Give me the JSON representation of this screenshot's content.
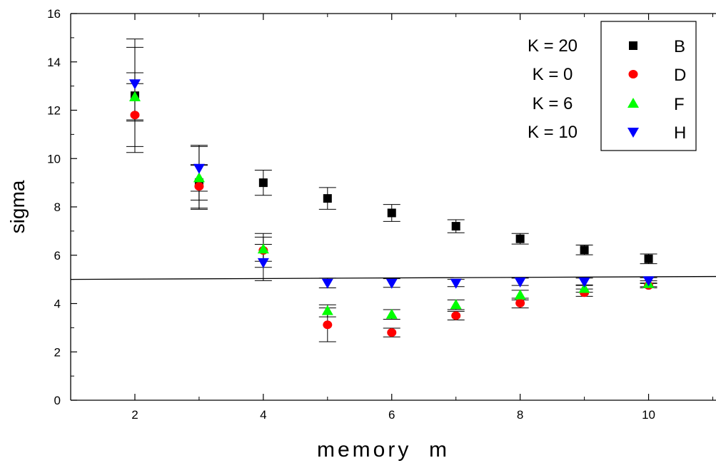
{
  "chart_data": {
    "type": "scatter",
    "xlabel": "memory  m",
    "ylabel": "sigma",
    "xlim": [
      1,
      11.05
    ],
    "ylim": [
      0,
      16
    ],
    "x_ticks": [
      2,
      4,
      6,
      8,
      10
    ],
    "y_ticks": [
      0,
      2,
      4,
      6,
      8,
      10,
      12,
      14,
      16
    ],
    "grid": false,
    "legend_position": "top-right",
    "x": [
      2,
      3,
      4,
      5,
      6,
      7,
      8,
      9,
      10
    ],
    "series": [
      {
        "name": "B",
        "annotation": "K = 20",
        "color": "#000000",
        "marker": "square",
        "values": [
          12.6,
          9.0,
          9.0,
          8.35,
          7.75,
          7.2,
          6.68,
          6.22,
          5.85
        ],
        "errors": [
          2.35,
          0.72,
          0.52,
          0.45,
          0.35,
          0.27,
          0.22,
          0.2,
          0.2
        ]
      },
      {
        "name": "D",
        "annotation": "K = 0",
        "color": "#ff0000",
        "marker": "circle",
        "values": [
          11.8,
          8.85,
          6.2,
          3.12,
          2.8,
          3.5,
          4.02,
          4.45,
          4.75
        ],
        "errors": [
          1.3,
          0.9,
          0.7,
          0.7,
          0.18,
          0.18,
          0.2,
          0.15,
          0.1
        ]
      },
      {
        "name": "F",
        "annotation": "K = 6",
        "color": "#00ff00",
        "marker": "triangle-up",
        "values": [
          12.55,
          9.2,
          6.25,
          3.7,
          3.55,
          3.95,
          4.35,
          4.62,
          4.82
        ],
        "errors": [
          1.0,
          1.3,
          0.5,
          0.25,
          0.2,
          0.2,
          0.2,
          0.15,
          0.12
        ]
      },
      {
        "name": "H",
        "annotation": "K = 10",
        "color": "#0000ff",
        "marker": "triangle-down",
        "values": [
          13.1,
          9.6,
          5.7,
          4.85,
          4.85,
          4.85,
          4.9,
          4.9,
          4.95
        ],
        "errors": [
          1.5,
          0.95,
          0.75,
          0.2,
          0.18,
          0.15,
          0.15,
          0.15,
          0.12
        ]
      }
    ],
    "reference_line": {
      "x": [
        1,
        11.05
      ],
      "y": [
        5.0,
        5.12
      ]
    }
  }
}
